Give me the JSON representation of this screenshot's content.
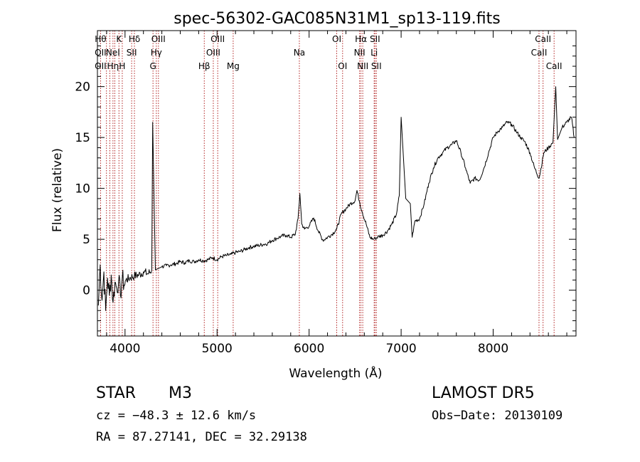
{
  "chart_data": {
    "type": "line",
    "title": "spec-56302-GAC085N31M1_sp13-119.fits",
    "xlabel": "Wavelength (Å)",
    "ylabel": "Flux (relative)",
    "xlim": [
      3700,
      8900
    ],
    "ylim": [
      -4.5,
      25.5
    ],
    "xticks": [
      4000,
      5000,
      6000,
      7000,
      8000
    ],
    "yticks": [
      0,
      5,
      10,
      15,
      20
    ],
    "grid": false,
    "series": [
      {
        "x": [
          3710,
          3730,
          3750,
          3770,
          3790,
          3810,
          3830,
          3850,
          3870,
          3890,
          3910,
          3930,
          3950,
          3970,
          3990,
          4010,
          4050,
          4100,
          4150,
          4200,
          4250,
          4290,
          4300,
          4330,
          4400,
          4450,
          4500,
          4550,
          4600,
          4650,
          4700,
          4750,
          4800,
          4850,
          4900,
          4950,
          5000,
          5050,
          5100,
          5150,
          5200,
          5250,
          5300,
          5350,
          5400,
          5450,
          5500,
          5550,
          5600,
          5650,
          5700,
          5750,
          5800,
          5850,
          5880,
          5900,
          5920,
          5950,
          6000,
          6050,
          6100,
          6150,
          6200,
          6250,
          6300,
          6350,
          6400,
          6450,
          6500,
          6520,
          6550,
          6580,
          6620,
          6660,
          6700,
          6720,
          6760,
          6800,
          6850,
          6900,
          6950,
          6980,
          7000,
          7050,
          7100,
          7120,
          7150,
          7200,
          7250,
          7300,
          7350,
          7400,
          7450,
          7500,
          7550,
          7600,
          7650,
          7700,
          7750,
          7800,
          7850,
          7900,
          7950,
          8000,
          8050,
          8100,
          8150,
          8200,
          8250,
          8300,
          8350,
          8400,
          8450,
          8500,
          8550,
          8600,
          8650,
          8680,
          8700,
          8750,
          8800,
          8850,
          8880
        ],
        "values": [
          -1.5,
          2.5,
          -1.0,
          1.8,
          -2.0,
          1.2,
          -0.5,
          1.5,
          -1.2,
          0.8,
          0.2,
          1.0,
          -0.5,
          1.2,
          0.5,
          1.0,
          1.2,
          1.4,
          1.5,
          1.8,
          1.6,
          2.0,
          16.5,
          2.0,
          2.3,
          2.4,
          2.5,
          2.6,
          2.8,
          2.7,
          2.9,
          2.8,
          3.0,
          2.9,
          3.0,
          3.2,
          3.0,
          3.3,
          3.4,
          3.5,
          3.7,
          3.8,
          4.0,
          4.2,
          4.3,
          4.4,
          4.5,
          4.6,
          4.9,
          5.1,
          5.3,
          5.4,
          5.2,
          5.5,
          7.0,
          9.5,
          6.5,
          6.0,
          6.3,
          7.1,
          5.8,
          4.9,
          5.2,
          5.5,
          6.0,
          7.5,
          8.0,
          8.5,
          8.8,
          9.8,
          8.6,
          7.6,
          6.5,
          5.2,
          5.0,
          5.1,
          5.3,
          5.4,
          5.8,
          6.5,
          7.5,
          9.3,
          17.0,
          9.0,
          8.5,
          5.2,
          6.8,
          7.0,
          8.5,
          10.5,
          12.0,
          13.0,
          13.5,
          14.0,
          14.3,
          14.7,
          13.5,
          12.0,
          10.5,
          11.0,
          10.8,
          12.0,
          13.5,
          15.0,
          15.6,
          16.0,
          16.5,
          16.3,
          15.6,
          15.0,
          14.5,
          13.5,
          12.0,
          11.0,
          13.5,
          14.0,
          14.5,
          20.0,
          14.8,
          16.0,
          16.5,
          17.0,
          15.0
        ]
      }
    ],
    "line_labels": [
      {
        "w": 3734,
        "labels": [
          "Hθ",
          "OII",
          "OII"
        ]
      },
      {
        "w": 3798,
        "labels": []
      },
      {
        "w": 3835,
        "labels": []
      },
      {
        "w": 3869,
        "labels": [
          "",
          "NeI",
          "Hη"
        ]
      },
      {
        "w": 3889,
        "labels": []
      },
      {
        "w": 3934,
        "labels": [
          "K"
        ]
      },
      {
        "w": 3970,
        "labels": [
          "",
          "",
          "H"
        ]
      },
      {
        "w": 4072,
        "labels": [
          "",
          "SII"
        ]
      },
      {
        "w": 4102,
        "labels": [
          "Hδ"
        ]
      },
      {
        "w": 4304,
        "labels": [
          "",
          "",
          "G"
        ]
      },
      {
        "w": 4340,
        "labels": [
          "",
          "Hγ"
        ]
      },
      {
        "w": 4363,
        "labels": [
          "OIII"
        ]
      },
      {
        "w": 4861,
        "labels": [
          "",
          "",
          "Hβ"
        ]
      },
      {
        "w": 4959,
        "labels": [
          "",
          "OIII"
        ]
      },
      {
        "w": 5007,
        "labels": [
          "OIII"
        ]
      },
      {
        "w": 5175,
        "labels": [
          "",
          "",
          "Mg"
        ]
      },
      {
        "w": 5894,
        "labels": [
          "",
          "Na"
        ]
      },
      {
        "w": 6300,
        "labels": [
          "OI"
        ]
      },
      {
        "w": 6364,
        "labels": [
          "",
          "",
          "OI"
        ]
      },
      {
        "w": 6548,
        "labels": [
          "",
          "NII"
        ]
      },
      {
        "w": 6563,
        "labels": [
          "Hα"
        ]
      },
      {
        "w": 6583,
        "labels": [
          "",
          "",
          "NII"
        ]
      },
      {
        "w": 6707,
        "labels": [
          "",
          "Li"
        ]
      },
      {
        "w": 6716,
        "labels": [
          "SII"
        ]
      },
      {
        "w": 6731,
        "labels": [
          "",
          "",
          "SII"
        ]
      },
      {
        "w": 8498,
        "labels": [
          "",
          "CaII"
        ]
      },
      {
        "w": 8542,
        "labels": [
          "CaII"
        ]
      },
      {
        "w": 8662,
        "labels": [
          "",
          "",
          "CaII"
        ]
      }
    ]
  },
  "info": {
    "object_class": "STAR",
    "subclass": "M3",
    "survey": "LAMOST  DR5",
    "cz": "cz = −48.3 ± 12.6 km/s",
    "obs_date": "Obs−Date: 20130109",
    "coords": "RA =  87.27141, DEC =  32.29138"
  },
  "colors": {
    "line_marker": "#b22222",
    "spectrum": "#000000",
    "axes": "#000000"
  }
}
